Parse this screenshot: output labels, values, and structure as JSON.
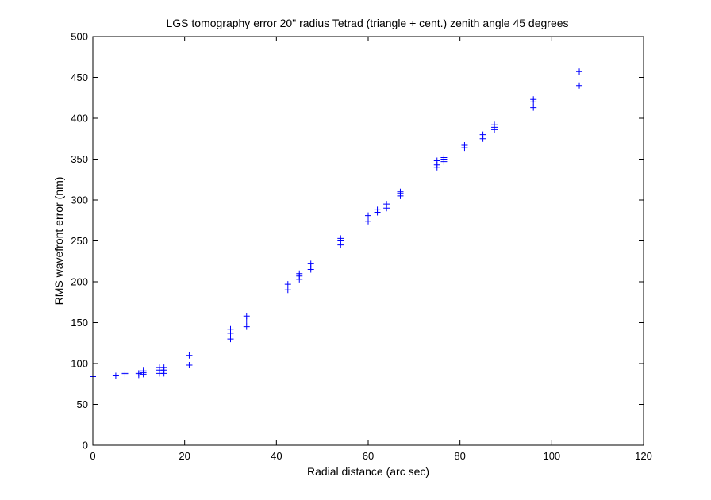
{
  "chart_data": {
    "type": "scatter",
    "title": "LGS tomography error 20\" radius Tetrad (triangle + cent.) zenith angle 45 degrees",
    "xlabel": "Radial distance (arc sec)",
    "ylabel": "RMS wavefront error (nm)",
    "xlim": [
      0,
      120
    ],
    "ylim": [
      0,
      500
    ],
    "xticks": [
      "0",
      "20",
      "40",
      "60",
      "80",
      "100",
      "120"
    ],
    "yticks": [
      "0",
      "50",
      "100",
      "150",
      "200",
      "250",
      "300",
      "350",
      "400",
      "450",
      "500"
    ],
    "grid": false,
    "marker": "+",
    "marker_color": "#0000ff",
    "series": [
      {
        "x": [
          0,
          5,
          7,
          7,
          10,
          10,
          11,
          11,
          11,
          14.5,
          14.5,
          14.5,
          15.5,
          15.5,
          15.5,
          21,
          21,
          30,
          30,
          30,
          33.5,
          33.5,
          33.5,
          42.5,
          42.5,
          45,
          45,
          45,
          47.5,
          47.5,
          47.5,
          54,
          54,
          54,
          60,
          60,
          62,
          62,
          64,
          64,
          67,
          67,
          67,
          75,
          75,
          75,
          76.5,
          76.5,
          76.5,
          81,
          81,
          85,
          85,
          87.5,
          87.5,
          87.5,
          96,
          96,
          96,
          106,
          106
        ],
        "y": [
          84,
          85,
          86,
          88,
          86,
          88,
          87,
          89,
          91,
          88,
          92,
          95,
          88,
          92,
          95,
          98,
          110,
          130,
          137,
          142,
          145,
          152,
          158,
          190,
          197,
          203,
          207,
          210,
          215,
          218,
          222,
          245,
          250,
          253,
          274,
          281,
          285,
          288,
          290,
          295,
          305,
          308,
          310,
          340,
          343,
          348,
          347,
          350,
          352,
          364,
          367,
          375,
          380,
          386,
          389,
          392,
          413,
          420,
          423,
          440,
          457
        ]
      }
    ]
  }
}
